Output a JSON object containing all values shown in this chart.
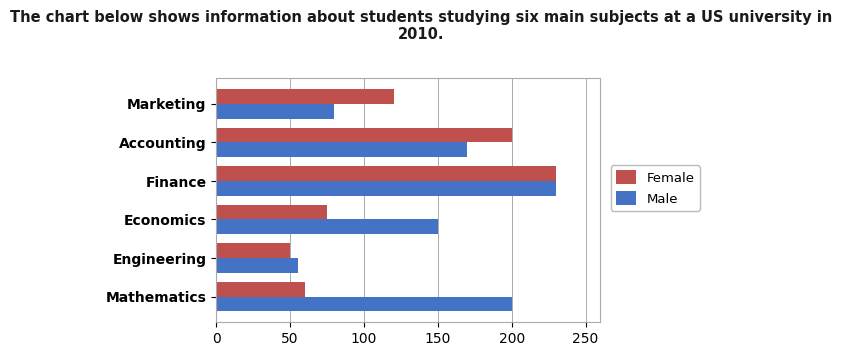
{
  "title": "The chart below shows information about students studying six main subjects at a US university in\n2010.",
  "categories": [
    "Marketing",
    "Accounting",
    "Finance",
    "Economics",
    "Engineering",
    "Mathematics"
  ],
  "female": [
    120,
    200,
    230,
    75,
    50,
    60
  ],
  "male": [
    80,
    170,
    230,
    150,
    55,
    200
  ],
  "female_color": "#C0504D",
  "male_color": "#4472C4",
  "xlim": [
    0,
    260
  ],
  "xticks": [
    0,
    50,
    100,
    150,
    200,
    250
  ],
  "legend_labels": [
    "Female",
    "Male"
  ],
  "title_fontsize": 10.5,
  "label_fontsize": 10,
  "background_color": "#ffffff",
  "plot_bg_color": "#ffffff"
}
